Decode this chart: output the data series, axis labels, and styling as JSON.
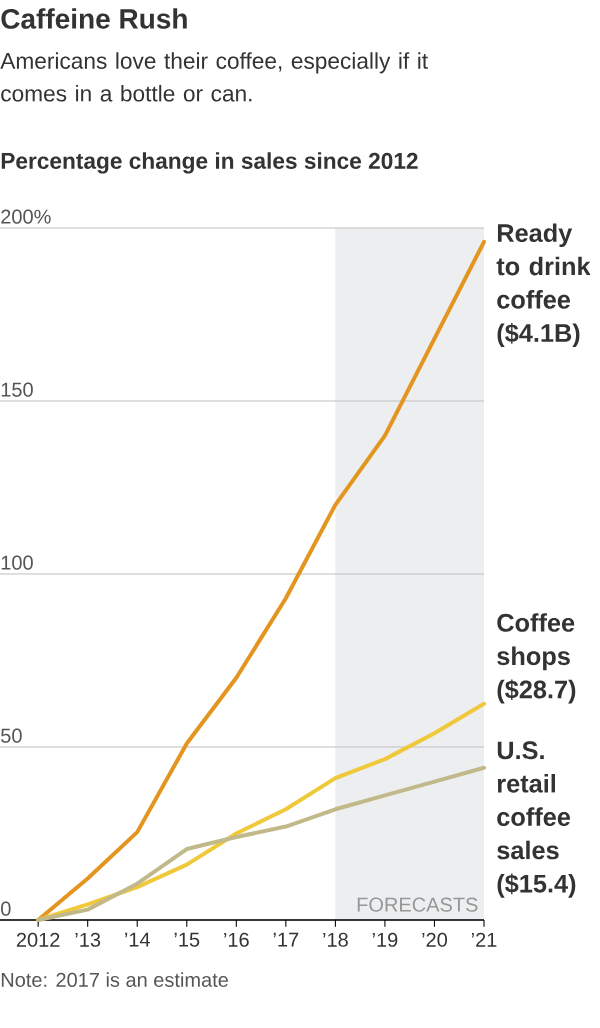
{
  "chart_data": {
    "type": "line",
    "title": "Caffeine Rush",
    "subtitle": "Americans love their coffee, especially if it comes in a bottle or can.",
    "ylabel": "Percentage change in sales since 2012",
    "x": [
      2012,
      2013,
      2014,
      2015,
      2016,
      2017,
      2018,
      2019,
      2020,
      2021
    ],
    "series": [
      {
        "name": "Ready to drink coffee ($4.1B)",
        "color": "#e3951f",
        "values": [
          0,
          12,
          25.4,
          51,
          70,
          93,
          120,
          140,
          168,
          196
        ]
      },
      {
        "name": "Coffee shops ($28.7)",
        "color": "#f0c93a",
        "values": [
          0,
          4.5,
          9.5,
          16,
          25,
          32,
          41,
          46.5,
          54,
          62.5
        ]
      },
      {
        "name": "U.S. retail coffee sales ($15.4)",
        "color": "#c2b98a",
        "values": [
          0,
          3,
          10.5,
          20.5,
          24,
          27,
          32,
          36,
          40,
          44
        ]
      }
    ],
    "xlim": [
      2011.23,
      2021
    ],
    "ylim": [
      0,
      200
    ],
    "xticks": [
      2012,
      {
        "value": 2013,
        "label": "’13"
      },
      {
        "value": 2014,
        "label": "’14"
      },
      {
        "value": 2015,
        "label": "’15"
      },
      {
        "value": 2016,
        "label": "’16"
      },
      {
        "value": 2017,
        "label": "’17"
      },
      {
        "value": 2018,
        "label": "’18"
      },
      {
        "value": 2019,
        "label": "’19"
      },
      {
        "value": 2020,
        "label": "’20"
      },
      {
        "value": 2021,
        "label": "’21"
      }
    ],
    "yticks": [
      0,
      50,
      100,
      150,
      {
        "value": 200,
        "label": "200%"
      }
    ],
    "grid": "y",
    "bands": [
      {
        "axis": "x",
        "from": 2018,
        "to": 2021,
        "label": "FORECASTS",
        "color": "#eceef0"
      }
    ],
    "annotations": [
      "Note: 2017 is an estimate"
    ]
  }
}
